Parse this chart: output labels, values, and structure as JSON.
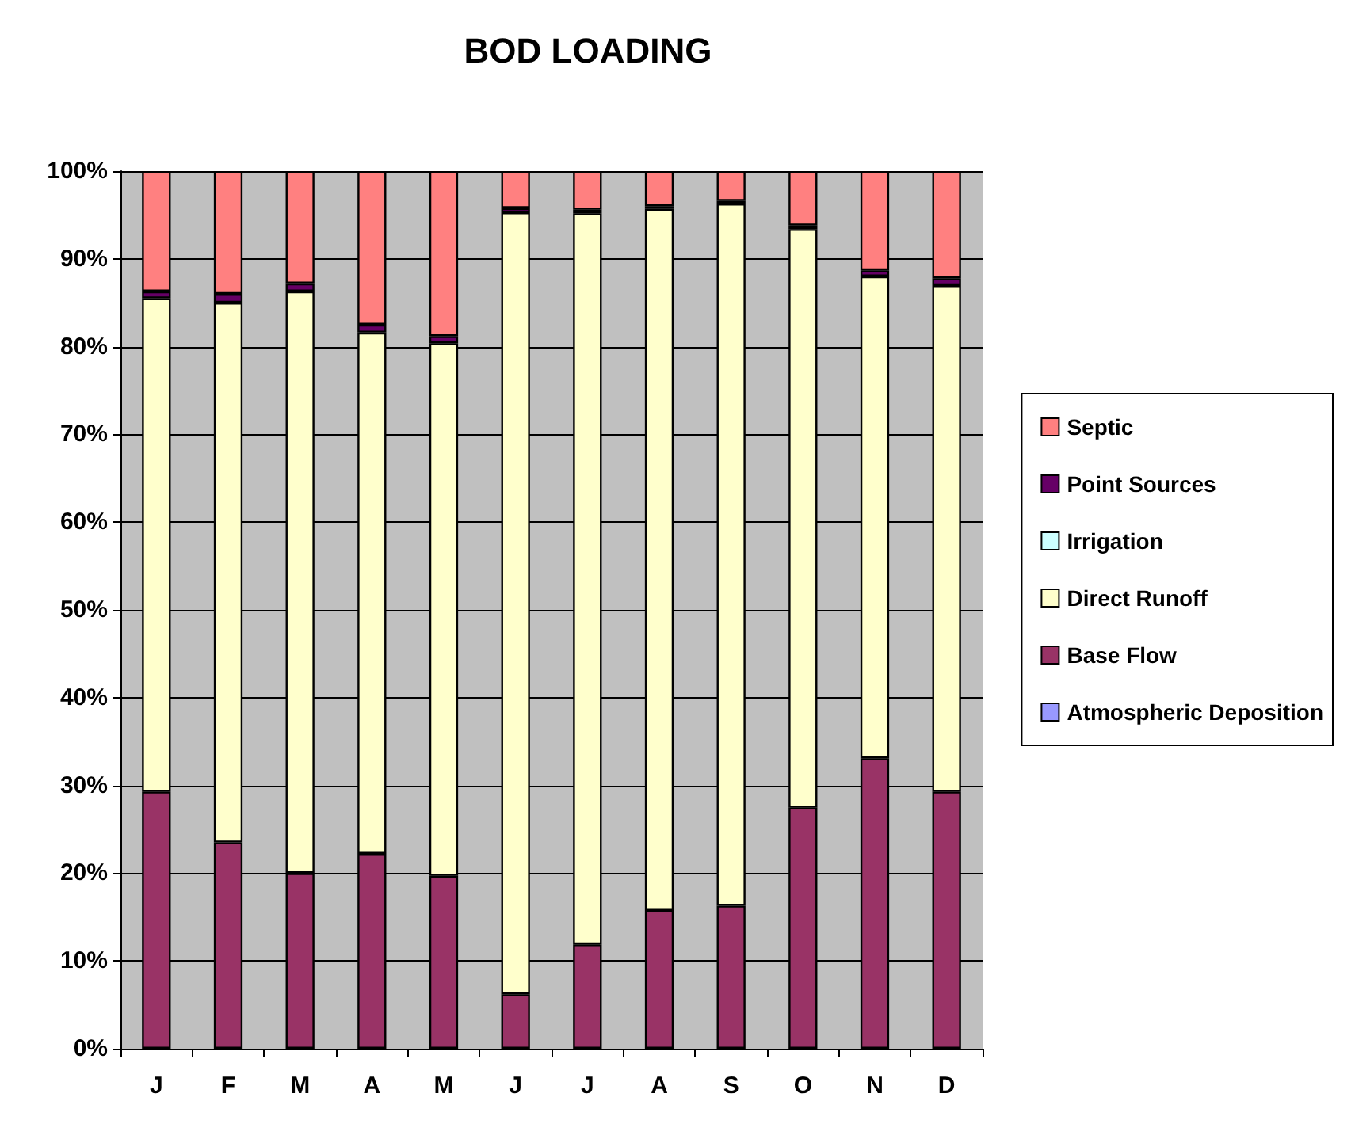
{
  "chart_data": {
    "type": "bar",
    "title": "BOD LOADING",
    "stacked": true,
    "categories": [
      "J",
      "F",
      "M",
      "A",
      "M",
      "J",
      "J",
      "A",
      "S",
      "O",
      "N",
      "D"
    ],
    "series": [
      {
        "name": "Atmospheric Deposition",
        "color": "#9999ff",
        "values": [
          0,
          0,
          0,
          0,
          0,
          0,
          0,
          0,
          0,
          0,
          0,
          0
        ]
      },
      {
        "name": "Base Flow",
        "color": "#993366",
        "values": [
          29.3,
          23.5,
          20,
          22.2,
          19.7,
          6.2,
          11.9,
          15.8,
          16.3,
          27.5,
          33.1,
          29.3
        ]
      },
      {
        "name": "Direct Runoff",
        "color": "#ffffcc",
        "values": [
          56.2,
          61.5,
          66.3,
          59.4,
          60.7,
          89.1,
          83.3,
          79.9,
          80.0,
          65.9,
          54.9,
          57.7
        ]
      },
      {
        "name": "Irrigation",
        "color": "#ccffff",
        "values": [
          0,
          0,
          0,
          0,
          0,
          0,
          0,
          0,
          0,
          0,
          0,
          0
        ]
      },
      {
        "name": "Point Sources",
        "color": "#660066",
        "values": [
          0.8,
          1.0,
          0.9,
          0.9,
          0.8,
          0.5,
          0.4,
          0.3,
          0.3,
          0.4,
          0.7,
          0.8
        ]
      },
      {
        "name": "Septic",
        "color": "#ff8080",
        "values": [
          13.7,
          14.0,
          12.8,
          17.5,
          18.8,
          4.2,
          4.4,
          4.0,
          3.4,
          6.2,
          11.3,
          12.2
        ]
      }
    ],
    "ylim": [
      0,
      100
    ],
    "yticks": [
      {
        "value": 0,
        "label": "0%"
      },
      {
        "value": 10,
        "label": "10%"
      },
      {
        "value": 20,
        "label": "20%"
      },
      {
        "value": 30,
        "label": "30%"
      },
      {
        "value": 40,
        "label": "40%"
      },
      {
        "value": 50,
        "label": "50%"
      },
      {
        "value": 60,
        "label": "60%"
      },
      {
        "value": 70,
        "label": "70%"
      },
      {
        "value": 80,
        "label": "80%"
      },
      {
        "value": 90,
        "label": "90%"
      },
      {
        "value": 100,
        "label": "100%"
      }
    ],
    "grid": "y",
    "legend": "right"
  }
}
